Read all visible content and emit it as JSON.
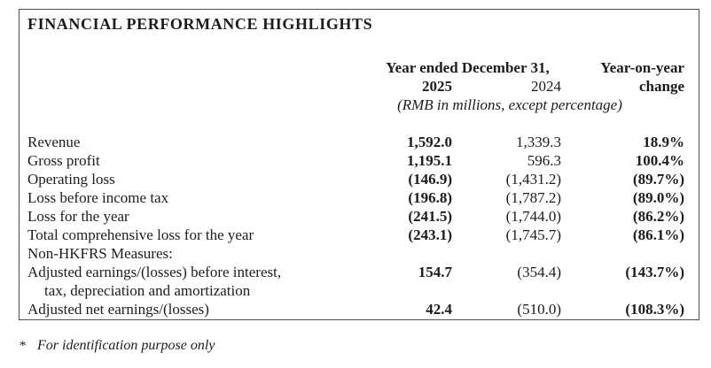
{
  "panel": {
    "title": "FINANCIAL PERFORMANCE HIGHLIGHTS"
  },
  "table": {
    "header": {
      "period_label": "Year ended December 31,",
      "yoy_label": "Year-on-year",
      "col_2025": "2025",
      "col_2024": "2024",
      "change_label": "change",
      "unit_note": "(RMB in millions, except percentage)"
    },
    "rows": [
      {
        "label": "Revenue",
        "v2025": "1,592.0",
        "v2024": "1,339.3",
        "change": "18.9%"
      },
      {
        "label": "Gross profit",
        "v2025": "1,195.1",
        "v2024": "596.3",
        "change": "100.4%"
      },
      {
        "label": "Operating loss",
        "v2025": "(146.9)",
        "v2024": "(1,431.2)",
        "change": "(89.7%)"
      },
      {
        "label": "Loss before income tax",
        "v2025": "(196.8)",
        "v2024": "(1,787.2)",
        "change": "(89.0%)"
      },
      {
        "label": "Loss for the year",
        "v2025": "(241.5)",
        "v2024": "(1,744.0)",
        "change": "(86.2%)"
      },
      {
        "label": "Total comprehensive loss for the year",
        "v2025": "(243.1)",
        "v2024": "(1,745.7)",
        "change": "(86.1%)"
      },
      {
        "label": "Non-HKFRS Measures:",
        "v2025": "",
        "v2024": "",
        "change": ""
      },
      {
        "label": "Adjusted earnings/(losses) before interest,",
        "v2025": "154.7",
        "v2024": "(354.4)",
        "change": "(143.7%)"
      },
      {
        "label": "tax, depreciation and amortization",
        "v2025": "",
        "v2024": "",
        "change": ""
      },
      {
        "label": "Adjusted net earnings/(losses)",
        "v2025": "42.4",
        "v2024": "(510.0)",
        "change": "(108.3%)"
      }
    ]
  },
  "footnote": {
    "marker": "*",
    "text": "For identification purpose only"
  }
}
